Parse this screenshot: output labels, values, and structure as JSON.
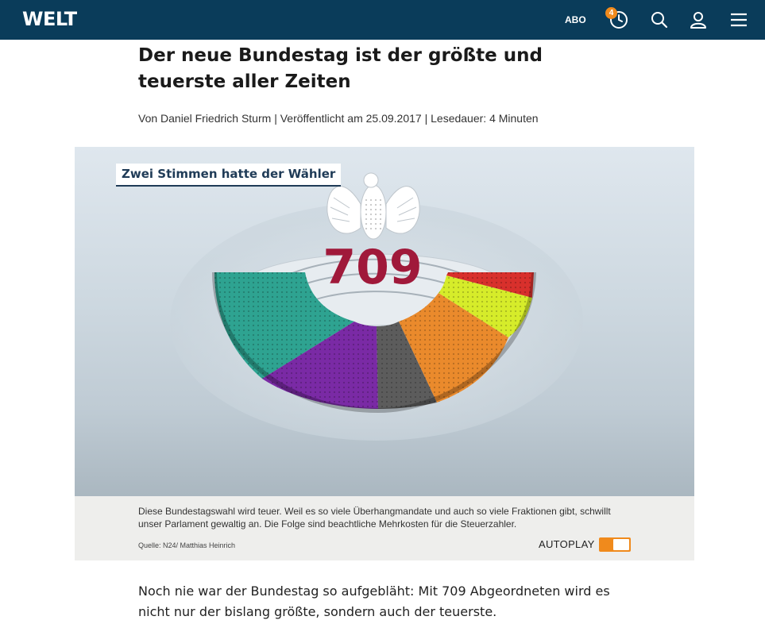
{
  "header": {
    "logo": "WELT",
    "abo_label": "ABO",
    "badge_count": "4",
    "icons": [
      "clock-icon",
      "search-icon",
      "user-icon",
      "menu-icon"
    ],
    "background_color": "#0a3c5a",
    "accent_color": "#f08a1c"
  },
  "article": {
    "headline": "Der neue Bundestag ist der größte und teuerste aller Zeiten",
    "byline": {
      "author": "Von Daniel Friedrich Sturm",
      "published": "Veröffentlicht am 25.09.2017",
      "reading_time": "Lesedauer: 4 Minuten",
      "separator": "|"
    },
    "body": "Noch nie war der Bundestag so aufgebläht: Mit 709 Abgeordneten wird es nicht nur der bislang größte, sondern auch der teuerste."
  },
  "video": {
    "label": "Zwei Stimmen hatte der Wähler",
    "seat_count": "709",
    "caption": "Diese Bundestagswahl wird teuer. Weil es so viele Überhangmandate und auch so viele Fraktionen gibt, schwillt unser Parlament gewaltig an. Die Folge sind beachtliche Mehrkosten für die Steuerzahler.",
    "source": "Quelle: N24/ Matthias Heinrich",
    "autoplay_label": "AUTOPLAY",
    "autoplay_on": true,
    "segment_colors": [
      "#2ea391",
      "#7a2aa5",
      "#5c5c5c",
      "#ea8a2c",
      "#d6ec2a",
      "#d8302c"
    ]
  }
}
